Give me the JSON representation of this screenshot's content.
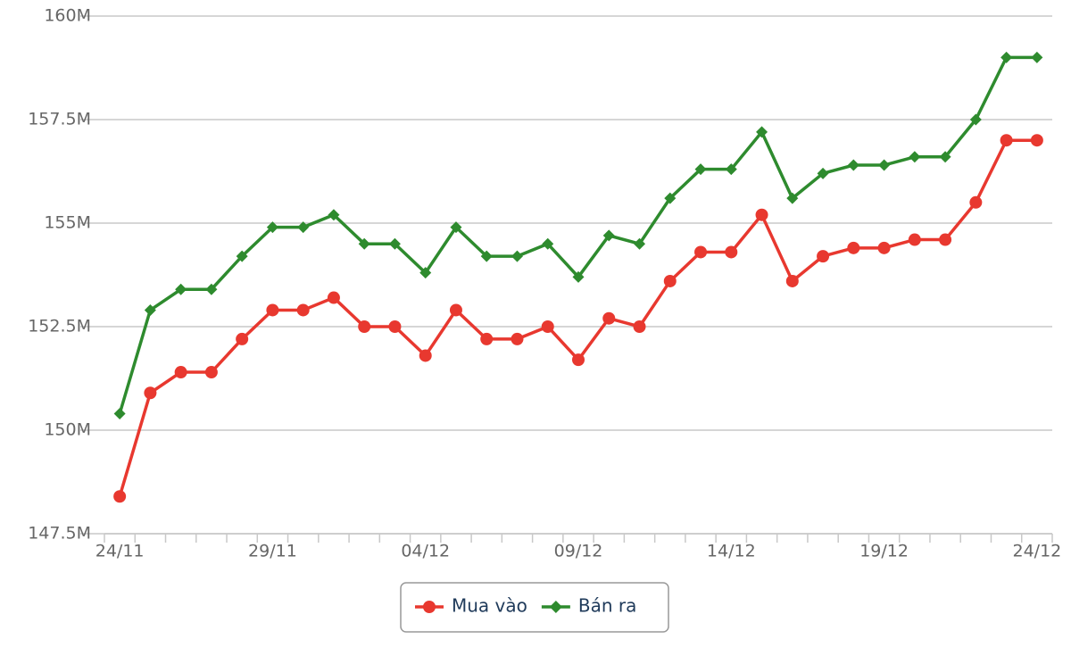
{
  "chart_data": {
    "type": "line",
    "categories": [
      "24/11",
      null,
      null,
      null,
      null,
      "29/11",
      null,
      null,
      null,
      null,
      "04/12",
      null,
      null,
      null,
      null,
      "09/12",
      null,
      null,
      null,
      null,
      "14/12",
      null,
      null,
      null,
      null,
      "19/12",
      null,
      null,
      null,
      null,
      "24/12"
    ],
    "series": [
      {
        "name": "Mua vào",
        "color": "#e8382f",
        "marker": "circle",
        "values": [
          148400000,
          150900000,
          151400000,
          151400000,
          152200000,
          152900000,
          152900000,
          153200000,
          152500000,
          152500000,
          151800000,
          152900000,
          152200000,
          152200000,
          152500000,
          151700000,
          152700000,
          152500000,
          153600000,
          154300000,
          154300000,
          155200000,
          153600000,
          154200000,
          154400000,
          154400000,
          154600000,
          154600000,
          155500000,
          157000000,
          157000000
        ]
      },
      {
        "name": "Bán ra",
        "color": "#2e8b2e",
        "marker": "diamond",
        "values": [
          150400000,
          152900000,
          153400000,
          153400000,
          154200000,
          154900000,
          154900000,
          155200000,
          154500000,
          154500000,
          153800000,
          154900000,
          154200000,
          154200000,
          154500000,
          153700000,
          154700000,
          154500000,
          155600000,
          156300000,
          156300000,
          157200000,
          155600000,
          156200000,
          156400000,
          156400000,
          156600000,
          156600000,
          157500000,
          159000000,
          159000000
        ]
      }
    ],
    "ylim": [
      147500000,
      160000000
    ],
    "yticks": [
      {
        "value": 147500000,
        "label": "147.5M"
      },
      {
        "value": 150000000,
        "label": "150M"
      },
      {
        "value": 152500000,
        "label": "152.5M"
      },
      {
        "value": 155000000,
        "label": "155M"
      },
      {
        "value": 157500000,
        "label": "157.5M"
      },
      {
        "value": 160000000,
        "label": "160M"
      }
    ],
    "grid": true,
    "legend": "bottom"
  }
}
